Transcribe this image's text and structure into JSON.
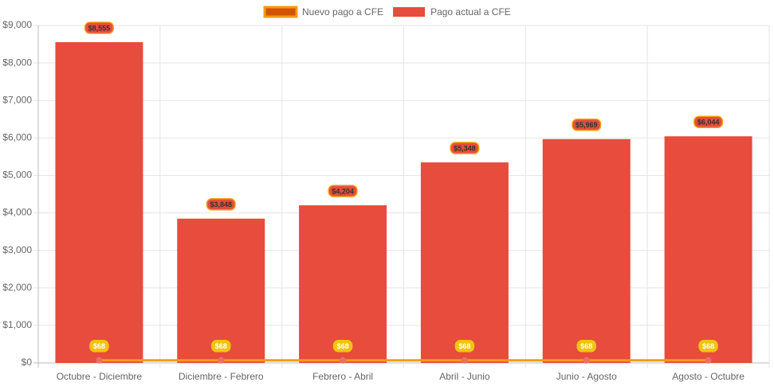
{
  "chart_data": {
    "type": "bar-line",
    "categories": [
      "Octubre - Diciembre",
      "Diciembre - Febrero",
      "Febrero - Abril",
      "Abril - Junio",
      "Junio - Agosto",
      "Agosto - Octubre"
    ],
    "series": [
      {
        "name": "Nuevo pago a CFE",
        "type": "line",
        "color": "#f39c12",
        "fill_color": "#d35400",
        "point_color": "#e8735a",
        "values": [
          68,
          68,
          68,
          68,
          68,
          68
        ],
        "value_labels": [
          "$68",
          "$68",
          "$68",
          "$68",
          "$68",
          "$68"
        ]
      },
      {
        "name": "Pago actual a CFE",
        "type": "bar",
        "color": "#e74c3c",
        "values": [
          8555,
          3848,
          4204,
          5348,
          5969,
          6044
        ],
        "value_labels": [
          "$8,555",
          "$3,848",
          "$4,204",
          "$5,348",
          "$5,969",
          "$6,044"
        ]
      }
    ],
    "ylim": [
      0,
      9000
    ],
    "yticks": [
      {
        "value": 0,
        "label": "$0"
      },
      {
        "value": 1000,
        "label": "$1,000"
      },
      {
        "value": 2000,
        "label": "$2,000"
      },
      {
        "value": 3000,
        "label": "$3,000"
      },
      {
        "value": 4000,
        "label": "$4,000"
      },
      {
        "value": 5000,
        "label": "$5,000"
      },
      {
        "value": 6000,
        "label": "$6,000"
      },
      {
        "value": 7000,
        "label": "$7,000"
      },
      {
        "value": 8000,
        "label": "$8,000"
      },
      {
        "value": 9000,
        "label": "$9,000"
      }
    ],
    "grid": true,
    "legend": "top"
  }
}
